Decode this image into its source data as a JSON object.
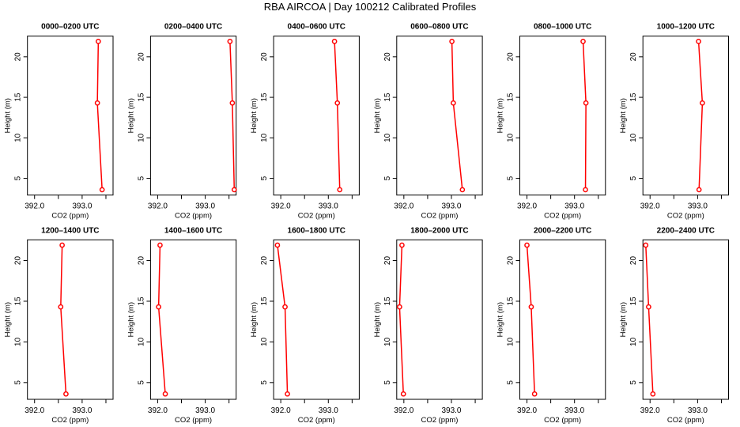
{
  "chart_data": {
    "type": "line",
    "title": "RBA AIRCOA |  Day 100212  Calibrated Profiles",
    "xlabel": "CO2 (ppm)",
    "ylabel": "Height (m)",
    "xlim": [
      391.85,
      393.65
    ],
    "ylim": [
      2.94,
      22.55
    ],
    "xticks": [
      392.0,
      392.5,
      393.0,
      393.5
    ],
    "xtick_labels": [
      "392.0",
      "",
      "393.0",
      ""
    ],
    "yticks": [
      5,
      10,
      15,
      20
    ],
    "ytick_labels": [
      "5",
      "10",
      "15",
      "20"
    ],
    "grid": false,
    "color": "#ff0000",
    "heights": [
      21.9,
      14.3,
      3.6
    ],
    "panels": [
      {
        "title": "0000–0200 UTC",
        "co2": [
          393.34,
          393.32,
          393.42
        ]
      },
      {
        "title": "0200–0400 UTC",
        "co2": [
          393.52,
          393.57,
          393.61
        ]
      },
      {
        "title": "0400–0600 UTC",
        "co2": [
          393.13,
          393.19,
          393.24
        ]
      },
      {
        "title": "0600–0800 UTC",
        "co2": [
          393.01,
          393.04,
          393.23
        ]
      },
      {
        "title": "0800–1000 UTC",
        "co2": [
          393.18,
          393.24,
          393.23
        ]
      },
      {
        "title": "1000–1200 UTC",
        "co2": [
          393.02,
          393.1,
          393.03
        ]
      },
      {
        "title": "1200–1400 UTC",
        "co2": [
          392.58,
          392.55,
          392.66
        ]
      },
      {
        "title": "1400–1600 UTC",
        "co2": [
          392.05,
          392.02,
          392.16
        ]
      },
      {
        "title": "1600–1800 UTC",
        "co2": [
          391.93,
          392.09,
          392.14
        ]
      },
      {
        "title": "1800–2000 UTC",
        "co2": [
          391.96,
          391.91,
          391.99
        ]
      },
      {
        "title": "2000–2200 UTC",
        "co2": [
          392.0,
          392.09,
          392.16
        ]
      },
      {
        "title": "2200–2400 UTC",
        "co2": [
          391.91,
          391.97,
          392.06
        ]
      }
    ]
  }
}
